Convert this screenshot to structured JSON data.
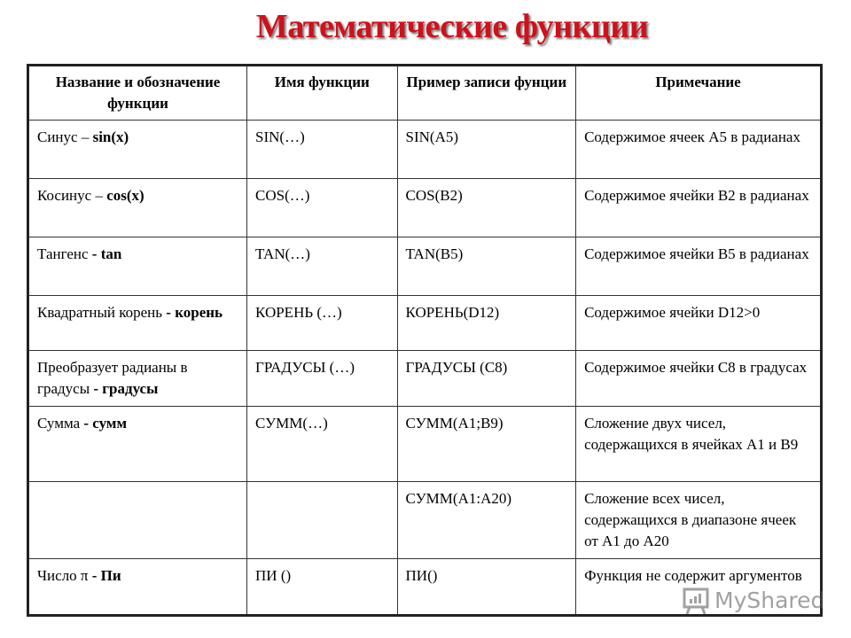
{
  "title": "Математические функции",
  "headers": [
    "Название и обозначение функции",
    "Имя функции",
    "Пример записи фунции",
    "Примечание"
  ],
  "rows": [
    {
      "name": "Синус – ",
      "name_bold": "sin(x)",
      "func": "SIN(…)",
      "example": "SIN(A5)",
      "note": "Содержимое ячеек A5 в радианах"
    },
    {
      "name": "Косинус – ",
      "name_bold": "cos(x)",
      "func": "COS(…)",
      "example": "COS(B2)",
      "note": "Содержимое ячейки B2 в радианах"
    },
    {
      "name": "Тангенс ",
      "name_bold": "- tan",
      "func": "TAN(…)",
      "example": "TAN(B5)",
      "note": "Содержимое ячейки B5 в радианах"
    },
    {
      "name": "Квадратный корень ",
      "name_bold": "- корень",
      "func": "КОРЕНЬ (…)",
      "example": "КОРЕНЬ(D12)",
      "note": "Содержимое ячейки D12>0"
    },
    {
      "name": "Преобразует радианы в градусы ",
      "name_bold": "- градусы",
      "func": "ГРАДУСЫ (…)",
      "example": "ГРАДУСЫ (C8)",
      "note": "Содержимое ячейки C8 в градусах"
    },
    {
      "name": "Сумма ",
      "name_bold": "- сумм",
      "func": "СУММ(…)",
      "example": "СУММ(A1;B9)",
      "note": "Сложение двух чисел, содержащихся в ячейках A1 и B9"
    },
    {
      "name": "",
      "name_bold": "",
      "func": "",
      "example": "СУММ(A1:A20)",
      "note": "Сложение всех чисел, содержащихся в диапазоне ячеек от A1 до A20"
    },
    {
      "name": "Число π ",
      "name_bold": "- Пи",
      "func": "ПИ ()",
      "example": "ПИ()",
      "note": "Функция не содержит аргументов"
    }
  ],
  "watermark": "MyShared",
  "colors": {
    "title": "#d0101a"
  }
}
